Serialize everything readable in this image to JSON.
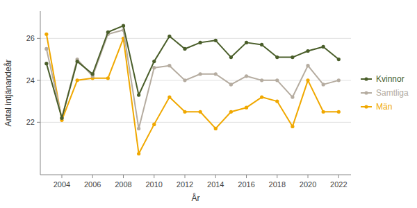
{
  "chart_data": {
    "type": "line",
    "xlabel": "År",
    "ylabel": "Antal intjänandeår",
    "x": [
      2003,
      2004,
      2005,
      2006,
      2007,
      2008,
      2009,
      2010,
      2011,
      2012,
      2013,
      2014,
      2015,
      2016,
      2017,
      2018,
      2019,
      2020,
      2021,
      2022
    ],
    "series": [
      {
        "name": "Kvinnor",
        "color": "#4a5e2a",
        "values": [
          24.8,
          22.2,
          24.9,
          24.3,
          26.3,
          26.6,
          23.3,
          24.9,
          26.1,
          25.5,
          25.8,
          25.9,
          25.1,
          25.8,
          25.7,
          25.1,
          25.1,
          25.4,
          25.6,
          25.0
        ]
      },
      {
        "name": "Samtliga",
        "color": "#b5aca0",
        "values": [
          25.5,
          22.2,
          25.0,
          24.2,
          26.2,
          26.4,
          21.7,
          24.6,
          24.7,
          24.0,
          24.3,
          24.3,
          23.8,
          24.2,
          24.0,
          24.0,
          23.2,
          24.7,
          23.8,
          24.0
        ]
      },
      {
        "name": "Män",
        "color": "#f0a800",
        "values": [
          26.2,
          22.1,
          24.0,
          24.1,
          24.1,
          26.0,
          20.5,
          21.9,
          23.2,
          22.5,
          22.5,
          21.7,
          22.5,
          22.7,
          23.2,
          23.0,
          21.8,
          24.0,
          22.5,
          22.5
        ]
      }
    ],
    "xlim": [
      2002.6,
      2022.8
    ],
    "xticks": [
      2004,
      2006,
      2008,
      2010,
      2012,
      2014,
      2016,
      2018,
      2020,
      2022
    ],
    "ylim": [
      19.5,
      27.3
    ],
    "yticks": [
      22,
      24,
      26
    ],
    "marker": "circle",
    "grid": true,
    "legend": "right"
  }
}
